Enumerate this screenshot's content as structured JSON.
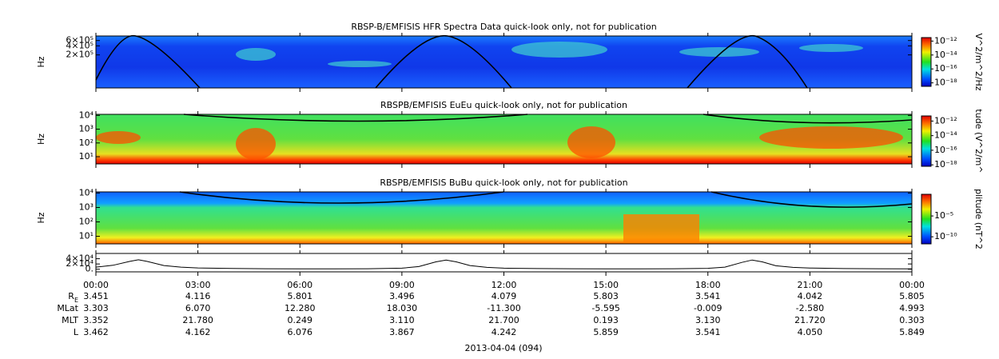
{
  "chart_data": [
    {
      "type": "spectrogram",
      "title": "RBSP-B/EMFISIS  HFR Spectra Data quick-look only, not for publication",
      "ylabel": "Hz",
      "ylog": true,
      "ylim": [
        16000,
        850000
      ],
      "yticks": [
        {
          "value": 200000,
          "label": "2×10⁵"
        },
        {
          "value": 400000,
          "label": "4×10⁵"
        },
        {
          "value": 600000,
          "label": "6×10⁵"
        }
      ],
      "colorbar_label": "V^2/m^2/Hz",
      "clim": [
        -18.5,
        -11.5
      ],
      "cticks": [
        {
          "value": -12,
          "label": "10⁻¹²"
        },
        {
          "value": -14,
          "label": "10⁻¹⁴"
        },
        {
          "value": -16,
          "label": "10⁻¹⁶"
        },
        {
          "value": -18,
          "label": "10⁻¹⁸"
        }
      ]
    },
    {
      "type": "spectrogram",
      "title": "RBSPB/EMFISIS  EuEu quick-look only, not for publication",
      "ylabel": "Hz",
      "ylog": true,
      "ylim": [
        3,
        12000
      ],
      "yticks": [
        {
          "value": 10,
          "label": "10¹"
        },
        {
          "value": 100,
          "label": "10²"
        },
        {
          "value": 1000,
          "label": "10³"
        },
        {
          "value": 10000,
          "label": "10⁴"
        }
      ],
      "colorbar_label": "tude (V^2/m^",
      "clim": [
        -18.2,
        -11.3
      ],
      "cticks": [
        {
          "value": -12,
          "label": "10⁻¹²"
        },
        {
          "value": -14,
          "label": "10⁻¹⁴"
        },
        {
          "value": -16,
          "label": "10⁻¹⁶"
        },
        {
          "value": -18,
          "label": "10⁻¹⁸"
        }
      ]
    },
    {
      "type": "spectrogram",
      "title": "RBSPB/EMFISIS  BuBu quick-look only, not for publication",
      "ylabel": "Hz",
      "ylog": true,
      "ylim": [
        3,
        12000
      ],
      "yticks": [
        {
          "value": 10,
          "label": "10¹"
        },
        {
          "value": 100,
          "label": "10²"
        },
        {
          "value": 1000,
          "label": "10³"
        },
        {
          "value": 10000,
          "label": "10⁴"
        }
      ],
      "colorbar_label": "plitude (nT^2",
      "clim": [
        -11.7,
        0.2
      ],
      "cticks": [
        {
          "value": -5,
          "label": "10⁻⁵"
        },
        {
          "value": -10,
          "label": "10⁻¹⁰"
        }
      ]
    },
    {
      "type": "line",
      "ylog": false,
      "ylim": [
        -10000,
        60000
      ],
      "color": "#000000",
      "yticks": [
        {
          "value": 0,
          "label": "0."
        },
        {
          "value": 20000,
          "label": "2×10⁴"
        },
        {
          "value": 40000,
          "label": "4×10⁴"
        }
      ],
      "xlim": [
        0,
        24
      ],
      "xticks": [
        {
          "value": 0,
          "label": "00:00"
        },
        {
          "value": 3,
          "label": "03:00"
        },
        {
          "value": 6,
          "label": "06:00"
        },
        {
          "value": 9,
          "label": "09:00"
        },
        {
          "value": 12,
          "label": "12:00"
        },
        {
          "value": 15,
          "label": "15:00"
        },
        {
          "value": 18,
          "label": "18:00"
        },
        {
          "value": 21,
          "label": "21:00"
        },
        {
          "value": 24,
          "label": "00:00"
        }
      ],
      "x": [
        0,
        0.5,
        1,
        1.25,
        1.5,
        2,
        2.5,
        3,
        4,
        5,
        6,
        7,
        8,
        9,
        9.5,
        10,
        10.3,
        10.6,
        11,
        11.5,
        12,
        13,
        14,
        15,
        16,
        17,
        18,
        18.5,
        19,
        19.3,
        19.6,
        20,
        20.5,
        21,
        22,
        23,
        24
      ],
      "values": [
        8000,
        15000,
        30000,
        36000,
        30000,
        14000,
        8000,
        5000,
        3000,
        2000,
        1500,
        1500,
        2000,
        4000,
        10000,
        28000,
        35000,
        28000,
        14000,
        7000,
        4000,
        2500,
        1800,
        1500,
        1500,
        2000,
        3500,
        8000,
        26000,
        35000,
        28000,
        13000,
        7000,
        4500,
        2500,
        1800,
        1500
      ]
    }
  ],
  "ephemeris": {
    "rows": [
      {
        "label": "R",
        "label_sub": "E",
        "values": [
          "3.451",
          "4.116",
          "5.801",
          "3.496",
          "4.079",
          "5.803",
          "3.541",
          "4.042",
          "5.805"
        ]
      },
      {
        "label": "MLat",
        "values": [
          "3.303",
          "6.070",
          "12.280",
          "18.030",
          "-11.300",
          "-5.595",
          "-0.009",
          "-2.580",
          "4.993"
        ]
      },
      {
        "label": "MLT",
        "values": [
          "3.352",
          "21.780",
          "0.249",
          "3.110",
          "21.700",
          "0.193",
          "3.130",
          "21.720",
          "0.303"
        ]
      },
      {
        "label": "L",
        "values": [
          "3.462",
          "4.162",
          "6.076",
          "3.867",
          "4.242",
          "5.859",
          "3.541",
          "4.050",
          "5.849"
        ]
      }
    ]
  },
  "date": "2013-04-04 (094)"
}
